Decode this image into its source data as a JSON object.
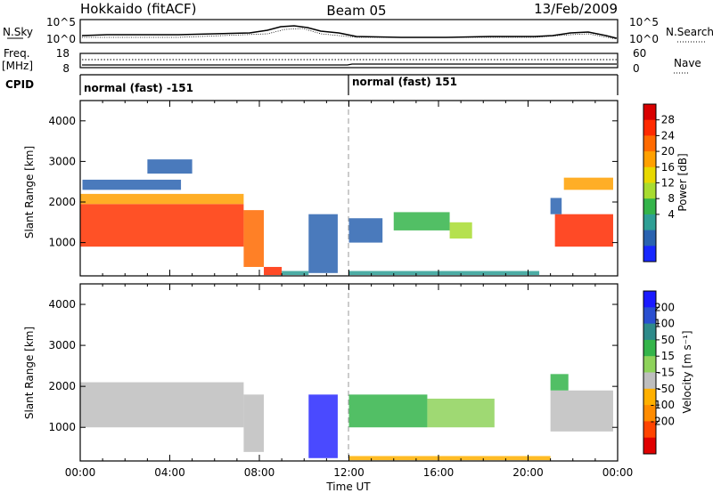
{
  "header": {
    "station": "Hokkaido (fitACF)",
    "beam": "Beam 05",
    "date": "13/Feb/2009"
  },
  "nsky_panel": {
    "left_label": "N.Sky",
    "right_label": "N.Search",
    "tick_top": "10^5",
    "tick_bottom": "10^0"
  },
  "freq_panel": {
    "label_1": "Freq.",
    "label_2": "[MHz]",
    "freq_top": "18",
    "freq_bottom": "8",
    "nave_top": "60",
    "nave_bottom": "0",
    "right_label": "Nave"
  },
  "cpid": {
    "label": "CPID",
    "segments": [
      {
        "text": "normal (fast) -151",
        "start_hour": 0
      },
      {
        "text": "normal (fast) 151",
        "start_hour": 12
      }
    ]
  },
  "chart_data": [
    {
      "type": "heatmap",
      "name": "power",
      "ylabel": "Slant Range [km]",
      "yticks": [
        1000,
        2000,
        3000,
        4000
      ],
      "ylim": [
        180,
        4500
      ],
      "xlim": [
        0,
        24
      ],
      "colorbar": {
        "label": "Power [dB]",
        "ticks": [
          "28",
          "24",
          "20",
          "16",
          "12",
          "8",
          "4"
        ],
        "colors": [
          "#d90000",
          "#ff2a00",
          "#ff6a00",
          "#ffa000",
          "#e8d800",
          "#a8dc30",
          "#34b44a",
          "#2e9f95",
          "#2a63b0",
          "#1828ff"
        ]
      },
      "regions": [
        {
          "h0": 0.0,
          "h1": 7.3,
          "r0": 900,
          "r1": 1950,
          "color": "#ff3300"
        },
        {
          "h0": 0.0,
          "h1": 7.3,
          "r0": 1950,
          "r1": 2200,
          "color": "#ffa000"
        },
        {
          "h0": 0.1,
          "h1": 4.5,
          "r0": 2300,
          "r1": 2550,
          "color": "#2a63b0"
        },
        {
          "h0": 3.0,
          "h1": 5.0,
          "r0": 2700,
          "r1": 3050,
          "color": "#2a63b0"
        },
        {
          "h0": 7.3,
          "h1": 8.2,
          "r0": 400,
          "r1": 1800,
          "color": "#ff6a00"
        },
        {
          "h0": 8.2,
          "h1": 9.0,
          "r0": 200,
          "r1": 400,
          "color": "#ff2a00"
        },
        {
          "h0": 9.0,
          "h1": 10.2,
          "r0": 200,
          "r1": 300,
          "color": "#2e9f95"
        },
        {
          "h0": 10.2,
          "h1": 11.5,
          "r0": 250,
          "r1": 1700,
          "color": "#2a63b0"
        },
        {
          "h0": 12.0,
          "h1": 13.5,
          "r0": 1000,
          "r1": 1600,
          "color": "#2a63b0"
        },
        {
          "h0": 14.0,
          "h1": 16.5,
          "r0": 1300,
          "r1": 1750,
          "color": "#34b44a"
        },
        {
          "h0": 16.5,
          "h1": 17.5,
          "r0": 1100,
          "r1": 1500,
          "color": "#a8dc30"
        },
        {
          "h0": 12.0,
          "h1": 20.5,
          "r0": 200,
          "r1": 300,
          "color": "#2e9f95"
        },
        {
          "h0": 21.2,
          "h1": 23.8,
          "r0": 900,
          "r1": 1700,
          "color": "#ff2a00"
        },
        {
          "h0": 21.0,
          "h1": 21.5,
          "r0": 1700,
          "r1": 2100,
          "color": "#2a63b0"
        },
        {
          "h0": 21.6,
          "h1": 23.8,
          "r0": 2300,
          "r1": 2600,
          "color": "#ffa000"
        }
      ]
    },
    {
      "type": "heatmap",
      "name": "velocity",
      "ylabel": "Slant Range [km]",
      "xlabel": "Time UT",
      "xticks": [
        "00:00",
        "04:00",
        "08:00",
        "12:00",
        "16:00",
        "20:00",
        "00:00"
      ],
      "yticks": [
        1000,
        2000,
        3000,
        4000
      ],
      "ylim": [
        180,
        4500
      ],
      "xlim": [
        0,
        24
      ],
      "colorbar": {
        "label": "Velocity [m s⁻¹]",
        "ticks": [
          "200",
          "100",
          "50",
          "15",
          "-15",
          "-50",
          "-100",
          "-200"
        ],
        "colors": [
          "#1a1aff",
          "#2a4fd0",
          "#2e8a8a",
          "#34b44a",
          "#8ed25a",
          "#bebebe",
          "#ffb000",
          "#ff8c00",
          "#ff4400",
          "#e00000"
        ]
      },
      "regions": [
        {
          "h0": 0.0,
          "h1": 7.3,
          "r0": 1000,
          "r1": 2100,
          "color": "#bebebe"
        },
        {
          "h0": 7.3,
          "h1": 8.2,
          "r0": 400,
          "r1": 1800,
          "color": "#bebebe"
        },
        {
          "h0": 10.2,
          "h1": 11.5,
          "r0": 250,
          "r1": 1800,
          "color": "#2a2aff"
        },
        {
          "h0": 12.0,
          "h1": 15.5,
          "r0": 1000,
          "r1": 1800,
          "color": "#34b44a"
        },
        {
          "h0": 15.5,
          "h1": 18.5,
          "r0": 1000,
          "r1": 1700,
          "color": "#8ed25a"
        },
        {
          "h0": 12.0,
          "h1": 21.0,
          "r0": 200,
          "r1": 300,
          "color": "#ffb000"
        },
        {
          "h0": 21.0,
          "h1": 23.8,
          "r0": 900,
          "r1": 1900,
          "color": "#bebebe"
        },
        {
          "h0": 21.0,
          "h1": 21.8,
          "r0": 1900,
          "r1": 2300,
          "color": "#34b44a"
        }
      ]
    }
  ]
}
